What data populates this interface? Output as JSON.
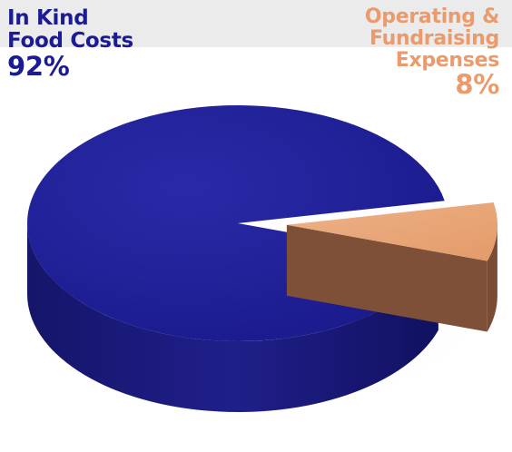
{
  "chart_data": {
    "type": "pie",
    "style": "3d",
    "categories": [
      "In Kind Food Costs",
      "Operating & Fundraising Expenses"
    ],
    "values": [
      92,
      8
    ],
    "value_labels": [
      "92%",
      "8%"
    ],
    "exploded": [
      false,
      true
    ],
    "colors": {
      "in_kind_top": "#1c1c93",
      "in_kind_side": "#15156f",
      "operating_top": "#e9a679",
      "operating_side": "#7e5038"
    },
    "labels": {
      "in_kind": {
        "line1": "In Kind",
        "line2": "Food Costs",
        "pct": "92%"
      },
      "operating": {
        "line1": "Operating &",
        "line2": "Fundraising",
        "line3": "Expenses",
        "pct": "8%"
      }
    }
  }
}
